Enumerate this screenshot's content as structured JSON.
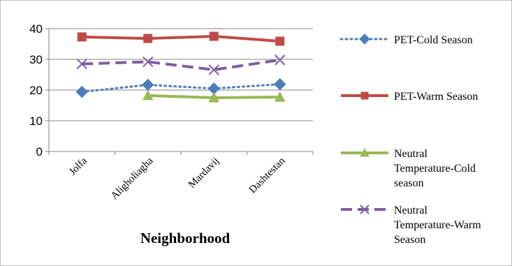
{
  "chart_data": {
    "type": "line",
    "title": "",
    "xlabel": "Neighborhood",
    "ylabel": "",
    "ylim": [
      0,
      40
    ],
    "yticks": [
      "0",
      "10",
      "20",
      "30",
      "40"
    ],
    "categories": [
      "Jolfa",
      "Aligholiagha",
      "Mardavij",
      "Dashtestan"
    ],
    "grid": true,
    "legend_position": "right",
    "series": [
      {
        "name": "PET-Cold Season",
        "legend_lines": [
          "PET-Cold Season"
        ],
        "values": [
          19.4,
          21.7,
          20.5,
          21.9
        ],
        "color": "#4a7ebb",
        "marker": "diamond",
        "dash": "dotted"
      },
      {
        "name": "PET-Warm Season",
        "legend_lines": [
          "PET-Warm Season"
        ],
        "values": [
          37.3,
          36.8,
          37.5,
          35.9
        ],
        "color": "#be4b48",
        "marker": "square",
        "dash": "solid"
      },
      {
        "name": "Neutral Temperature-Cold season",
        "legend_lines": [
          "Neutral",
          "Temperature-Cold",
          "season"
        ],
        "values": [
          null,
          18.2,
          17.5,
          17.7
        ],
        "color": "#98b954",
        "marker": "triangle",
        "dash": "solid"
      },
      {
        "name": " Neutral Temperature-Warm Season",
        "legend_lines": [
          " Neutral",
          "Temperature-Warm",
          "Season"
        ],
        "values": [
          28.5,
          29.2,
          26.6,
          29.8
        ],
        "color": "#7d60a0",
        "marker": "x",
        "dash": "dashed"
      }
    ]
  }
}
